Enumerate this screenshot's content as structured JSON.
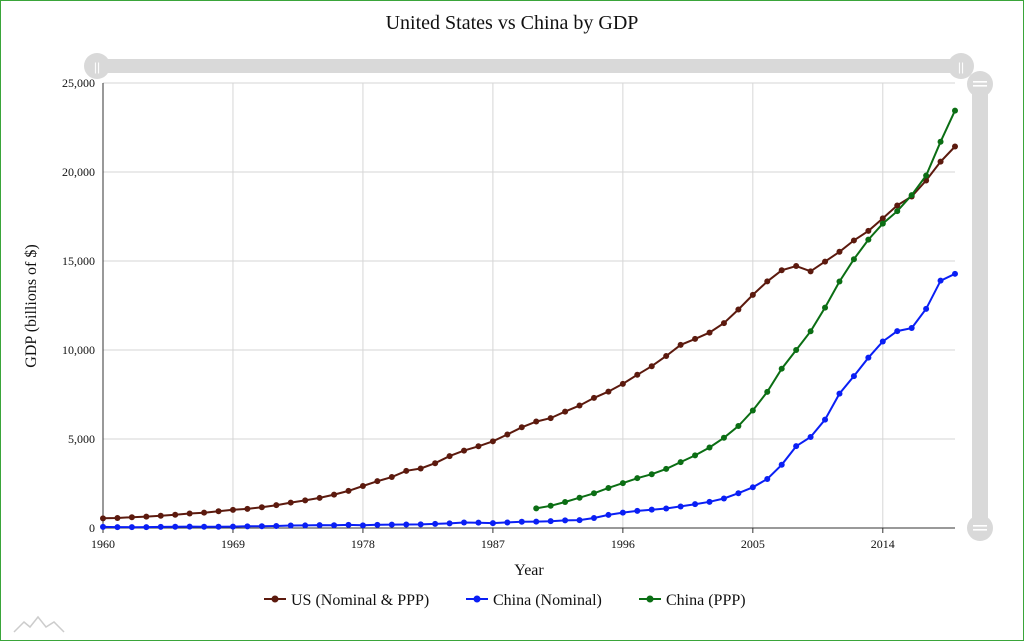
{
  "title": "United States vs China by GDP",
  "colors": {
    "us": "#5c1a0e",
    "china_nominal": "#0a1ff5",
    "china_ppp": "#0b6e14",
    "frame": "#3aa53a",
    "scrollbar": "#d9d9d9"
  },
  "chart_data": {
    "type": "line",
    "title": "United States vs China by GDP",
    "xlabel": "Year",
    "ylabel": "GDP (billions of $)",
    "xlim": [
      1960,
      2019
    ],
    "ylim": [
      0,
      25000
    ],
    "x_ticks": [
      "1960",
      "1969",
      "1978",
      "1987",
      "1996",
      "2005",
      "2014"
    ],
    "y_ticks": [
      "0",
      "5,000",
      "10,000",
      "15,000",
      "20,000",
      "25,000"
    ],
    "grid": true,
    "legend_position": "bottom",
    "series": [
      {
        "name": "US (Nominal & PPP)",
        "color": "#5c1a0e",
        "x": [
          1960,
          1961,
          1962,
          1963,
          1964,
          1965,
          1966,
          1967,
          1968,
          1969,
          1970,
          1971,
          1972,
          1973,
          1974,
          1975,
          1976,
          1977,
          1978,
          1979,
          1980,
          1981,
          1982,
          1983,
          1984,
          1985,
          1986,
          1987,
          1988,
          1989,
          1990,
          1991,
          1992,
          1993,
          1994,
          1995,
          1996,
          1997,
          1998,
          1999,
          2000,
          2001,
          2002,
          2003,
          2004,
          2005,
          2006,
          2007,
          2008,
          2009,
          2010,
          2011,
          2012,
          2013,
          2014,
          2015,
          2016,
          2017,
          2018,
          2019
        ],
        "values": [
          543,
          563,
          605,
          639,
          686,
          744,
          815,
          862,
          943,
          1020,
          1075,
          1168,
          1282,
          1429,
          1549,
          1689,
          1878,
          2086,
          2357,
          2632,
          2862,
          3211,
          3345,
          3638,
          4041,
          4347,
          4590,
          4870,
          5253,
          5658,
          5980,
          6174,
          6539,
          6879,
          7309,
          7664,
          8100,
          8609,
          9089,
          9661,
          10285,
          10622,
          10978,
          11511,
          12275,
          13094,
          13856,
          14478,
          14719,
          14419,
          14964,
          15518,
          16155,
          16692,
          17393,
          18121,
          18625,
          19520,
          20580,
          21430
        ]
      },
      {
        "name": "China (Nominal)",
        "color": "#0a1ff5",
        "x": [
          1960,
          1961,
          1962,
          1963,
          1964,
          1965,
          1966,
          1967,
          1968,
          1969,
          1970,
          1971,
          1972,
          1973,
          1974,
          1975,
          1976,
          1977,
          1978,
          1979,
          1980,
          1981,
          1982,
          1983,
          1984,
          1985,
          1986,
          1987,
          1988,
          1989,
          1990,
          1991,
          1992,
          1993,
          1994,
          1995,
          1996,
          1997,
          1998,
          1999,
          2000,
          2001,
          2002,
          2003,
          2004,
          2005,
          2006,
          2007,
          2008,
          2009,
          2010,
          2011,
          2012,
          2013,
          2014,
          2015,
          2016,
          2017,
          2018,
          2019
        ],
        "values": [
          60,
          50,
          47,
          51,
          60,
          70,
          76,
          73,
          71,
          79,
          93,
          99,
          113,
          139,
          144,
          163,
          154,
          175,
          150,
          178,
          191,
          196,
          205,
          231,
          260,
          309,
          300,
          273,
          312,
          348,
          361,
          383,
          427,
          445,
          564,
          734,
          863,
          962,
          1029,
          1094,
          1211,
          1339,
          1471,
          1660,
          1955,
          2286,
          2752,
          3552,
          4598,
          5110,
          6087,
          7552,
          8532,
          9570,
          10475,
          11062,
          11233,
          12310,
          13895,
          14280
        ]
      },
      {
        "name": "China (PPP)",
        "color": "#0b6e14",
        "x": [
          1990,
          1991,
          1992,
          1993,
          1994,
          1995,
          1996,
          1997,
          1998,
          1999,
          2000,
          2001,
          2002,
          2003,
          2004,
          2005,
          2006,
          2007,
          2008,
          2009,
          2010,
          2011,
          2012,
          2013,
          2014,
          2015,
          2016,
          2017,
          2018,
          2019
        ],
        "values": [
          1100,
          1250,
          1460,
          1700,
          1950,
          2250,
          2520,
          2800,
          3020,
          3320,
          3700,
          4080,
          4520,
          5070,
          5730,
          6600,
          7650,
          8950,
          10000,
          11050,
          12380,
          13850,
          15100,
          16200,
          17100,
          17800,
          18700,
          19800,
          21700,
          23450
        ]
      }
    ]
  }
}
